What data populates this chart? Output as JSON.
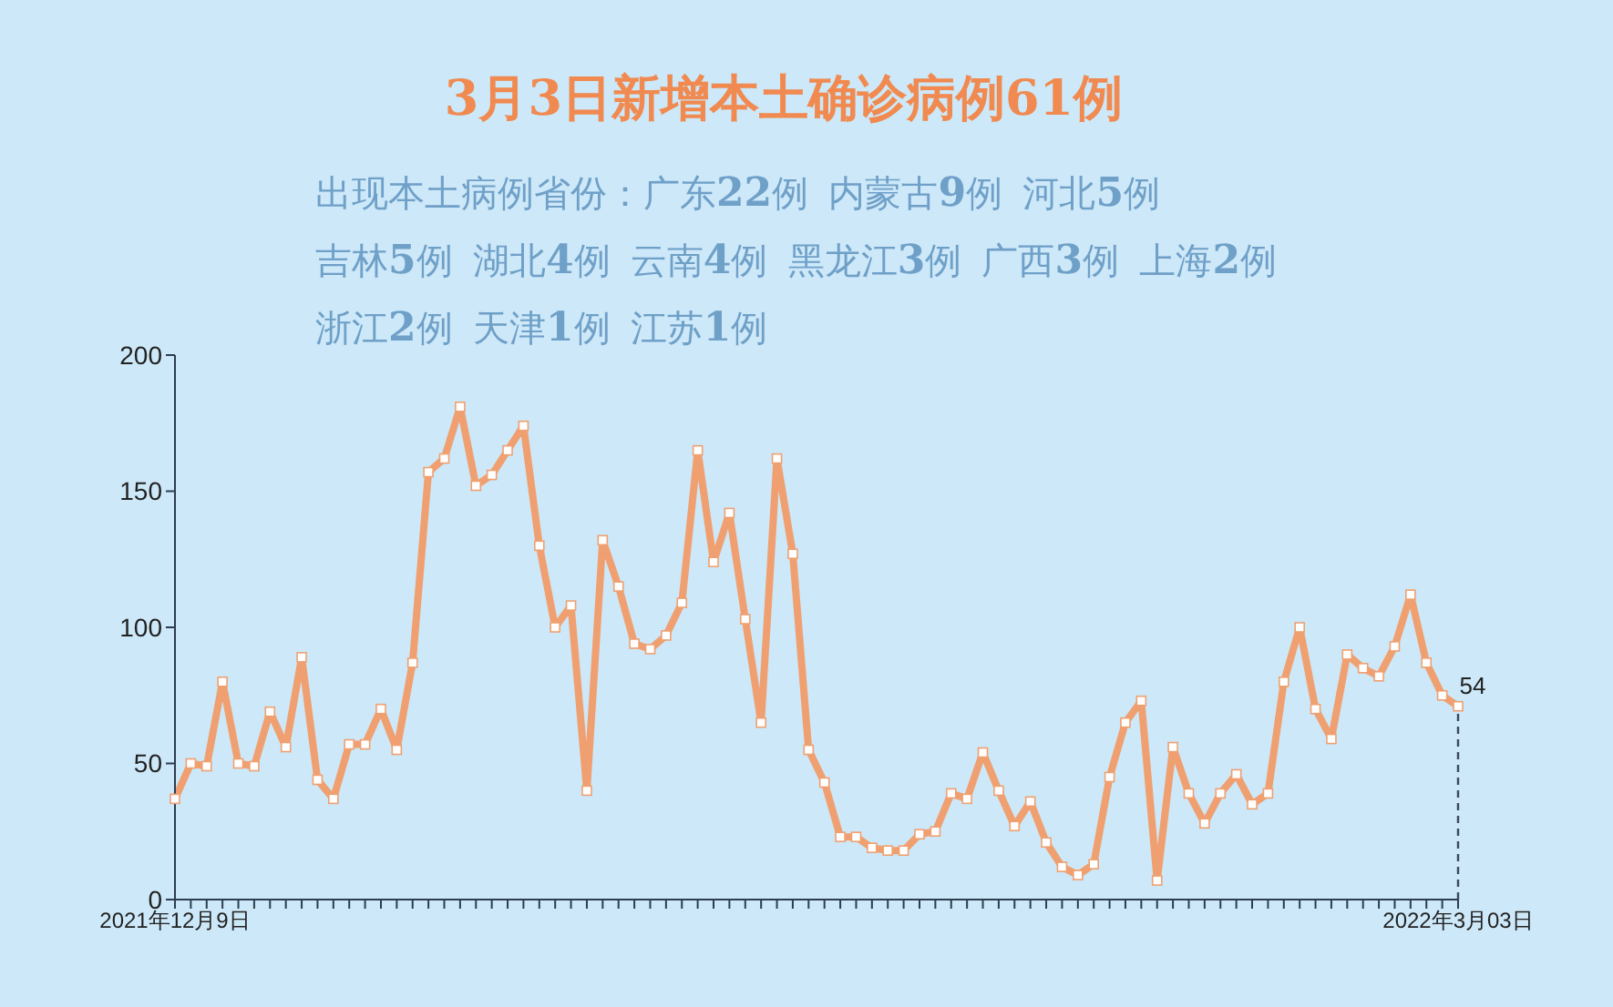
{
  "chart_data": {
    "type": "line",
    "title": "3月3日新增本土确诊病例61例",
    "subtitle": "出现本土病例省份：广东22例  内蒙古9例  河北5例",
    "categories": [
      "2021年12月9日",
      null,
      null,
      null,
      null,
      null,
      null,
      null,
      null,
      null,
      null,
      null,
      null,
      null,
      null,
      null,
      null,
      null,
      null,
      null,
      null,
      null,
      null,
      null,
      null,
      null,
      null,
      null,
      null,
      null,
      null,
      null,
      null,
      null,
      null,
      null,
      null,
      null,
      null,
      null,
      null,
      null,
      null,
      null,
      null,
      null,
      null,
      null,
      null,
      null,
      null,
      null,
      null,
      null,
      null,
      null,
      null,
      null,
      null,
      null,
      null,
      null,
      null,
      null,
      null,
      null,
      null,
      null,
      null,
      null,
      null,
      null,
      null,
      null,
      null,
      null,
      null,
      null,
      null,
      null,
      null,
      "2022年3月03日"
    ],
    "series": [
      {
        "color": "#f0a070",
        "values": [
          37,
          50,
          49,
          80,
          50,
          49,
          69,
          56,
          89,
          44,
          37,
          57,
          57,
          70,
          55,
          87,
          157,
          162,
          181,
          152,
          156,
          165,
          174,
          130,
          100,
          108,
          40,
          132,
          115,
          94,
          92,
          97,
          109,
          165,
          124,
          142,
          103,
          65,
          162,
          127,
          55,
          43,
          23,
          23,
          19,
          18,
          18,
          24,
          25,
          39,
          37,
          54,
          40,
          27,
          36,
          21,
          12,
          9,
          13,
          45,
          65,
          73,
          7,
          56,
          39,
          28,
          39,
          46,
          35,
          39,
          80,
          100,
          70,
          59,
          90,
          85,
          82,
          93,
          112,
          87,
          75,
          71
        ]
      }
    ],
    "ylim": [
      0,
      200
    ],
    "yticks": [
      0,
      50,
      100,
      150,
      200
    ],
    "grid": false,
    "legend": false,
    "marker": "square",
    "line_style": "solid",
    "annotations": [
      "吉林5例  湖北4例  云南4例  黑龙江3例  广西3例  上海2例",
      "浙江2例  天津1例  江苏1例",
      {
        "text": "54",
        "x": "2022年3月03日",
        "y": 71
      }
    ],
    "ref_lines": [
      {
        "axis": "x",
        "value": "2022年3月03日",
        "color": "#3a4a5a",
        "line_style": "dashed"
      }
    ]
  }
}
